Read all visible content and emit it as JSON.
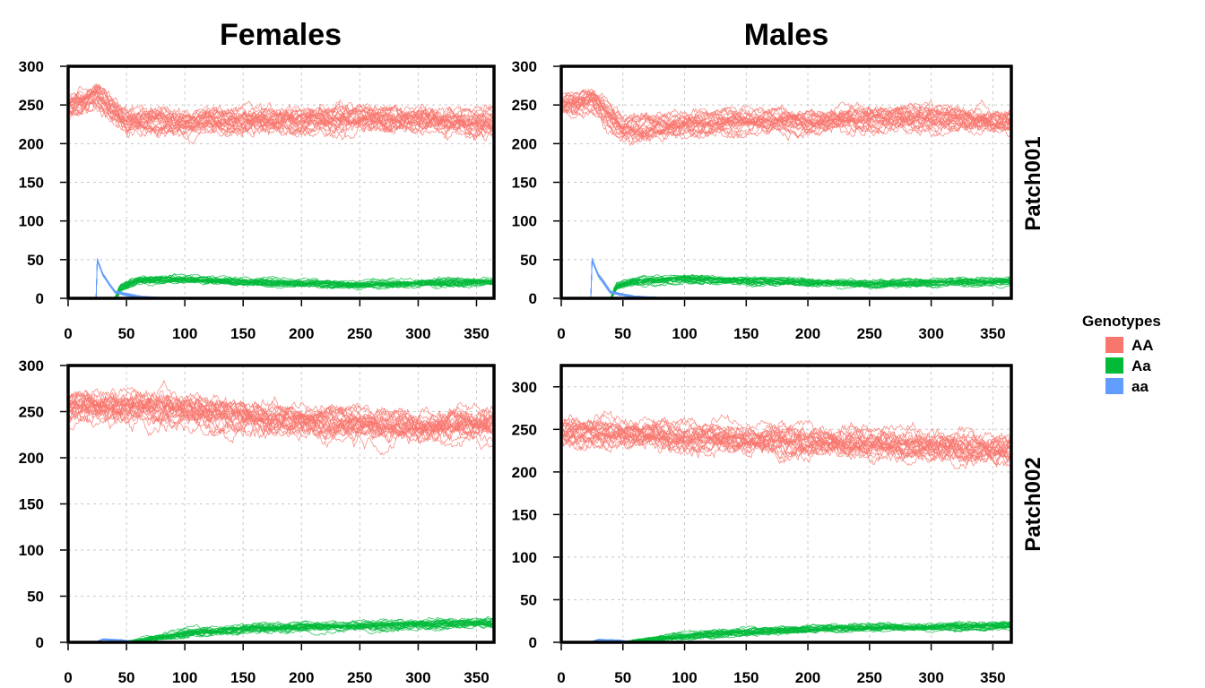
{
  "chart_data": {
    "type": "line",
    "columns": [
      "Females",
      "Males"
    ],
    "rows": [
      "Patch001",
      "Patch002"
    ],
    "x_ticks": [
      0,
      50,
      100,
      150,
      200,
      250,
      300,
      350
    ],
    "xlim": [
      0,
      365
    ],
    "legend": {
      "title": "Genotypes",
      "placement": "right",
      "entries": [
        {
          "label": "AA",
          "color": "#F8766D"
        },
        {
          "label": "Aa",
          "color": "#00BA38"
        },
        {
          "label": "aa",
          "color": "#619CFF"
        }
      ]
    },
    "grid": true,
    "replicates_per_genotype": 25,
    "panels": [
      {
        "row": "Patch001",
        "column": "Females",
        "ylim": [
          0,
          300
        ],
        "y_ticks": [
          0,
          50,
          100,
          150,
          200,
          250,
          300
        ],
        "series": [
          {
            "genotype": "AA",
            "values": [
              [
                0,
                250
              ],
              [
                25,
                265
              ],
              [
                50,
                232
              ],
              [
                100,
                230
              ],
              [
                150,
                232
              ],
              [
                200,
                233
              ],
              [
                250,
                236
              ],
              [
                300,
                235
              ],
              [
                365,
                230
              ]
            ],
            "spread": 30
          },
          {
            "genotype": "Aa",
            "values": [
              [
                0,
                0
              ],
              [
                40,
                0
              ],
              [
                45,
                15
              ],
              [
                60,
                24
              ],
              [
                100,
                26
              ],
              [
                150,
                22
              ],
              [
                200,
                20
              ],
              [
                250,
                18
              ],
              [
                300,
                20
              ],
              [
                365,
                22
              ]
            ],
            "spread": 9
          },
          {
            "genotype": "aa",
            "values": [
              [
                0,
                0
              ],
              [
                24,
                0
              ],
              [
                25,
                50
              ],
              [
                30,
                30
              ],
              [
                40,
                8
              ],
              [
                60,
                2
              ],
              [
                90,
                0
              ],
              [
                365,
                0
              ]
            ],
            "spread": 3
          }
        ]
      },
      {
        "row": "Patch001",
        "column": "Males",
        "ylim": [
          0,
          300
        ],
        "y_ticks": [
          0,
          50,
          100,
          150,
          200,
          250,
          300
        ],
        "series": [
          {
            "genotype": "AA",
            "values": [
              [
                0,
                250
              ],
              [
                25,
                258
              ],
              [
                50,
                220
              ],
              [
                100,
                226
              ],
              [
                150,
                230
              ],
              [
                200,
                228
              ],
              [
                250,
                232
              ],
              [
                300,
                233
              ],
              [
                365,
                228
              ]
            ],
            "spread": 28
          },
          {
            "genotype": "Aa",
            "values": [
              [
                0,
                0
              ],
              [
                40,
                0
              ],
              [
                45,
                15
              ],
              [
                60,
                22
              ],
              [
                100,
                25
              ],
              [
                150,
                23
              ],
              [
                200,
                21
              ],
              [
                250,
                19
              ],
              [
                300,
                21
              ],
              [
                365,
                22
              ]
            ],
            "spread": 9
          },
          {
            "genotype": "aa",
            "values": [
              [
                0,
                0
              ],
              [
                24,
                0
              ],
              [
                25,
                50
              ],
              [
                30,
                30
              ],
              [
                40,
                8
              ],
              [
                60,
                2
              ],
              [
                90,
                0
              ],
              [
                365,
                0
              ]
            ],
            "spread": 3
          }
        ]
      },
      {
        "row": "Patch002",
        "column": "Females",
        "ylim": [
          0,
          300
        ],
        "y_ticks": [
          0,
          50,
          100,
          150,
          200,
          250,
          300
        ],
        "series": [
          {
            "genotype": "AA",
            "values": [
              [
                0,
                252
              ],
              [
                50,
                252
              ],
              [
                100,
                250
              ],
              [
                150,
                242
              ],
              [
                200,
                238
              ],
              [
                250,
                236
              ],
              [
                300,
                230
              ],
              [
                365,
                235
              ]
            ],
            "spread": 30
          },
          {
            "genotype": "Aa",
            "values": [
              [
                0,
                0
              ],
              [
                50,
                0
              ],
              [
                100,
                10
              ],
              [
                150,
                15
              ],
              [
                200,
                17
              ],
              [
                250,
                18
              ],
              [
                300,
                20
              ],
              [
                365,
                22
              ]
            ],
            "spread": 9
          },
          {
            "genotype": "aa",
            "values": [
              [
                0,
                0
              ],
              [
                24,
                0
              ],
              [
                30,
                3
              ],
              [
                45,
                2
              ],
              [
                60,
                0
              ],
              [
                365,
                0
              ]
            ],
            "spread": 1.5
          }
        ]
      },
      {
        "row": "Patch002",
        "column": "Males",
        "ylim": [
          0,
          325
        ],
        "y_ticks": [
          0,
          50,
          100,
          150,
          200,
          250,
          300
        ],
        "series": [
          {
            "genotype": "AA",
            "values": [
              [
                0,
                250
              ],
              [
                50,
                248
              ],
              [
                100,
                243
              ],
              [
                150,
                240
              ],
              [
                200,
                237
              ],
              [
                250,
                236
              ],
              [
                300,
                233
              ],
              [
                365,
                230
              ]
            ],
            "spread": 30
          },
          {
            "genotype": "Aa",
            "values": [
              [
                0,
                0
              ],
              [
                50,
                0
              ],
              [
                100,
                8
              ],
              [
                150,
                13
              ],
              [
                200,
                16
              ],
              [
                250,
                18
              ],
              [
                300,
                18
              ],
              [
                365,
                20
              ]
            ],
            "spread": 8
          },
          {
            "genotype": "aa",
            "values": [
              [
                0,
                0
              ],
              [
                24,
                0
              ],
              [
                30,
                3
              ],
              [
                45,
                2
              ],
              [
                60,
                0
              ],
              [
                365,
                0
              ]
            ],
            "spread": 1.5
          }
        ]
      }
    ]
  }
}
